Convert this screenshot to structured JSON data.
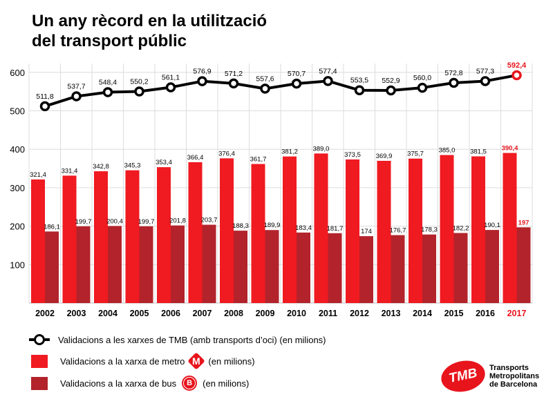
{
  "title_line1": "Un any rècord en la utilització",
  "title_line2": "del transport públic",
  "chart_data": {
    "type": "bar",
    "categories": [
      "2002",
      "2003",
      "2004",
      "2005",
      "2006",
      "2007",
      "2008",
      "2009",
      "2010",
      "2011",
      "2012",
      "2013",
      "2014",
      "2015",
      "2016",
      "2017"
    ],
    "highlight_category": "2017",
    "y_ticks": [
      100,
      200,
      300,
      400,
      500,
      600
    ],
    "ylim": [
      0,
      620
    ],
    "grid": true,
    "series": [
      {
        "kind": "line",
        "name": "Validacions a les xarxes de TMB (amb transports d'oci) (en milions)",
        "values": [
          511.8,
          537.7,
          548.4,
          550.2,
          561.1,
          576.9,
          571.2,
          557.6,
          570.7,
          577.4,
          553.5,
          552.9,
          560.0,
          572.8,
          577.3,
          592.4
        ],
        "labels": [
          "511,8",
          "537,7",
          "548,4",
          "550,2",
          "561,1",
          "576,9",
          "571,2",
          "557,6",
          "570,7",
          "577,4",
          "553,5",
          "552,9",
          "560,0",
          "572,8",
          "577,3",
          "592,4"
        ]
      },
      {
        "kind": "bar",
        "name": "Validacions a la xarxa de metro (en milions)",
        "values": [
          321.4,
          331.4,
          342.8,
          345.3,
          353.4,
          366.4,
          376.4,
          361.7,
          381.2,
          389.0,
          373.5,
          369.9,
          375.7,
          385.0,
          381.5,
          390.4
        ],
        "labels": [
          "321,4",
          "331,4",
          "342,8",
          "345,3",
          "353,4",
          "366,4",
          "376,4",
          "361,7",
          "381,2",
          "389,0",
          "373,5",
          "369,9",
          "375,7",
          "385,0",
          "381,5",
          "390,4"
        ]
      },
      {
        "kind": "bar",
        "name": "Validacions a la xarxa de bus (en milions)",
        "values": [
          186.1,
          199.7,
          200.4,
          199.7,
          201.8,
          203.7,
          188.3,
          189.9,
          183.4,
          181.7,
          174,
          176.7,
          178.3,
          182.2,
          190.1,
          197
        ],
        "labels": [
          "186,1",
          "199,7",
          "200,4",
          "199,7",
          "201,8",
          "203,7",
          "188,3",
          "189,9",
          "183,4",
          "181,7",
          "174",
          "176,7",
          "178,3",
          "182,2",
          "190,1",
          "197"
        ]
      }
    ]
  },
  "colors": {
    "line": "#000000",
    "metro": "#f01a21",
    "bus": "#b3232b",
    "highlight": "#e8141c",
    "grid": "#dcdcdc"
  },
  "legend": {
    "line_label": "Validacions a les xarxes de TMB (amb transports d’oci) (en milions)",
    "metro_label": "Validacions a la xarxa de metro",
    "metro_badge": "M",
    "metro_unit": "(en milions)",
    "bus_label": "Validacions a la xarxa de bus",
    "bus_badge": "B",
    "bus_unit": "(en milions)"
  },
  "logo": {
    "mark": "TMB",
    "line1": "Transports",
    "line2": "Metropolitans",
    "line3": "de Barcelona",
    "icon": "tmb-logo"
  }
}
